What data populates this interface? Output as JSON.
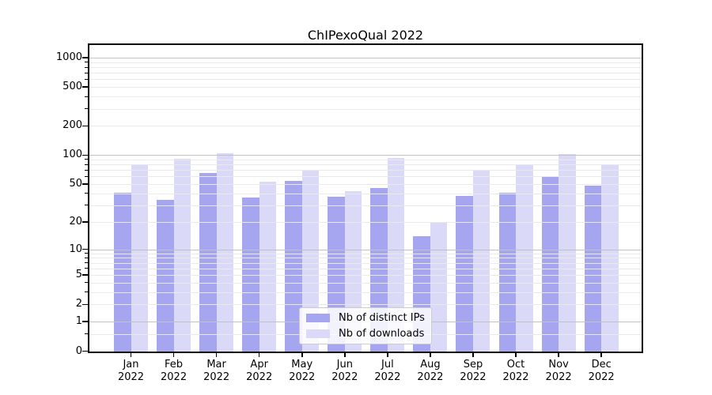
{
  "title": "ChIPexoQual 2022",
  "chart_data": {
    "type": "bar",
    "title": "ChIPexoQual 2022",
    "categories": [
      {
        "month": "Jan",
        "year": "2022"
      },
      {
        "month": "Feb",
        "year": "2022"
      },
      {
        "month": "Mar",
        "year": "2022"
      },
      {
        "month": "Apr",
        "year": "2022"
      },
      {
        "month": "May",
        "year": "2022"
      },
      {
        "month": "Jun",
        "year": "2022"
      },
      {
        "month": "Jul",
        "year": "2022"
      },
      {
        "month": "Aug",
        "year": "2022"
      },
      {
        "month": "Sep",
        "year": "2022"
      },
      {
        "month": "Oct",
        "year": "2022"
      },
      {
        "month": "Nov",
        "year": "2022"
      },
      {
        "month": "Dec",
        "year": "2022"
      }
    ],
    "series": [
      {
        "name": "Nb of distinct IPs",
        "color": "#a5a5f0",
        "values": [
          41,
          34,
          65,
          36,
          54,
          37,
          46,
          14,
          38,
          41,
          61,
          48
        ]
      },
      {
        "name": "Nb of downloads",
        "color": "#dadaf8",
        "values": [
          81,
          92,
          105,
          53,
          70,
          42,
          93,
          20,
          71,
          80,
          103,
          80
        ]
      }
    ],
    "xlabel": "",
    "ylabel": "",
    "yscale": "log(value+1)",
    "ylim": [
      0,
      1300
    ],
    "ytick_labels": [
      0,
      1,
      2,
      5,
      10,
      20,
      50,
      100,
      200,
      500,
      1000
    ],
    "grid": true,
    "grid_position": "above-bars",
    "legend_position": "lower center",
    "colors": {
      "major_grid": "#c2c2c2",
      "minor_grid": "#e9e9e9",
      "axis": "#000000",
      "background": "#ffffff"
    }
  },
  "legend": {
    "items": [
      {
        "label": "Nb of distinct IPs",
        "color": "#a5a5f0"
      },
      {
        "label": "Nb of downloads",
        "color": "#dadaf8"
      }
    ]
  }
}
